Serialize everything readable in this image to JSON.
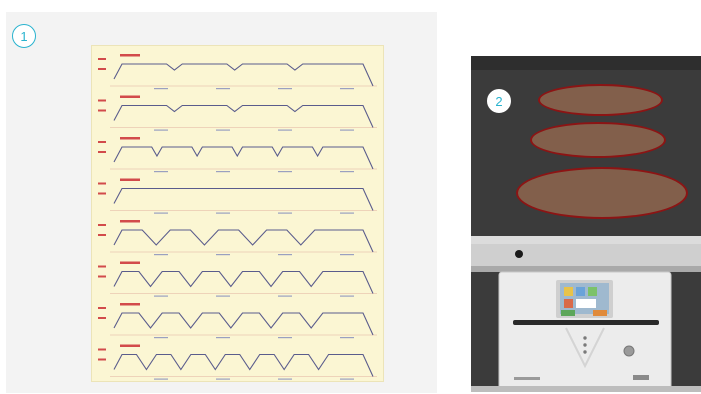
{
  "step_markers": {
    "first": "1",
    "second": "2"
  },
  "profile_sheet": {
    "row_count": 8,
    "row_title_color": "#d24b4b",
    "line_color": "#5a5c8c",
    "background_color": "#fbf6d3"
  },
  "chart_data": {
    "type": "line",
    "title": "",
    "xlabel": "",
    "ylabel": "",
    "series": [
      {
        "pattern": "trapezoid",
        "pulses": 4,
        "shape": "flat plateaus with shallow dips"
      },
      {
        "pattern": "trapezoid",
        "pulses": 4,
        "shape": "flat plateaus with shallow dips"
      },
      {
        "pattern": "trapezoid",
        "pulses": 6,
        "shape": "rectangular pulses"
      },
      {
        "pattern": "constant",
        "pulses": 1,
        "shape": "single long plateau"
      },
      {
        "pattern": "trapezoid",
        "pulses": 5,
        "shape": "deep V dips"
      },
      {
        "pattern": "trapezoid",
        "pulses": 6,
        "shape": "deep V dips"
      },
      {
        "pattern": "trapezoid",
        "pulses": 6,
        "shape": "deep V dips"
      },
      {
        "pattern": "trapezoid",
        "pulses": 7,
        "shape": "deep V dips"
      }
    ]
  },
  "photo": {
    "cabinet_color": "#3a3a3a",
    "tray_highlight_color": "#8c1414",
    "tray_count": 3,
    "control_unit_color": "#e9e9e9"
  }
}
